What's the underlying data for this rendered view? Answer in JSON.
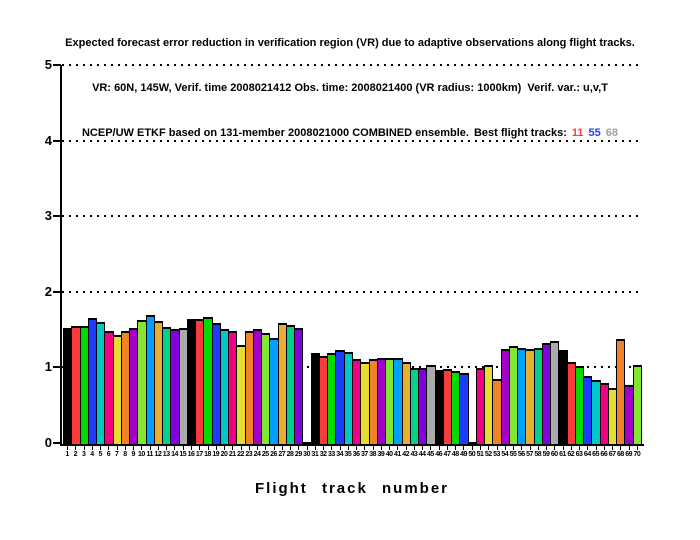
{
  "chart_data": {
    "type": "bar",
    "title_lines": [
      "Expected forecast error reduction in verification region (VR) due to adaptive observations along flight tracks.",
      "VR: 60N, 145W, Verif. time 2008021412 Obs. time: 2008021400 (VR radius: 1000km)  Verif. var.: u,v,T",
      "NCEP/UW ETKF based on 131-member 2008021000 COMBINED ensemble."
    ],
    "best_tracks_label": "Best flight tracks:",
    "best_tracks": [
      {
        "label": "11",
        "color": "#fa3c3c"
      },
      {
        "label": "55",
        "color": "#1e3cff"
      },
      {
        "label": "68",
        "color": "#a0a0a0"
      }
    ],
    "xlabel": "Flight track number",
    "ylabel": "",
    "ylim": [
      0,
      5
    ],
    "yticks": [
      0,
      1,
      2,
      3,
      4,
      5
    ],
    "grid": "horizontal dotted lines at each y tick",
    "legend": "none",
    "bar_outline_color": "#000000",
    "palette_cycle": [
      "#000000",
      "#fa3c3c",
      "#00dc00",
      "#1e3cff",
      "#00c8c8",
      "#f00082",
      "#e6dc32",
      "#f08228",
      "#a000c8",
      "#82e632",
      "#00a0ff",
      "#e6af2d",
      "#00d28c",
      "#8200dc",
      "#aaaaaa"
    ],
    "categories": [
      1,
      2,
      3,
      4,
      5,
      6,
      7,
      8,
      9,
      10,
      11,
      12,
      13,
      14,
      15,
      16,
      17,
      18,
      19,
      20,
      21,
      22,
      23,
      24,
      25,
      26,
      27,
      28,
      29,
      30,
      31,
      32,
      33,
      34,
      35,
      36,
      37,
      38,
      39,
      40,
      41,
      42,
      43,
      44,
      45,
      46,
      47,
      48,
      49,
      50,
      51,
      52,
      53,
      54,
      55,
      56,
      57,
      58,
      59,
      60,
      61,
      62,
      63,
      64,
      65,
      66,
      67,
      68,
      69,
      70
    ],
    "values": [
      1.54,
      1.56,
      1.56,
      1.67,
      1.61,
      1.49,
      1.44,
      1.5,
      1.54,
      1.64,
      1.71,
      1.63,
      1.55,
      1.52,
      1.54,
      1.66,
      1.65,
      1.68,
      1.6,
      1.52,
      1.5,
      1.31,
      1.49,
      1.52,
      1.47,
      1.4,
      1.6,
      1.58,
      1.53,
      0.02,
      1.2,
      1.16,
      1.21,
      1.25,
      1.22,
      1.12,
      1.08,
      1.13,
      1.14,
      1.14,
      1.14,
      1.09,
      1.0,
      1.01,
      1.04,
      0.98,
      0.99,
      0.96,
      0.94,
      0.02,
      1.0,
      1.05,
      0.86,
      1.26,
      1.29,
      1.27,
      1.26,
      1.27,
      1.33,
      1.36,
      1.24,
      1.09,
      1.03,
      0.9,
      0.84,
      0.81,
      0.74,
      1.39,
      0.78,
      1.05
    ]
  }
}
